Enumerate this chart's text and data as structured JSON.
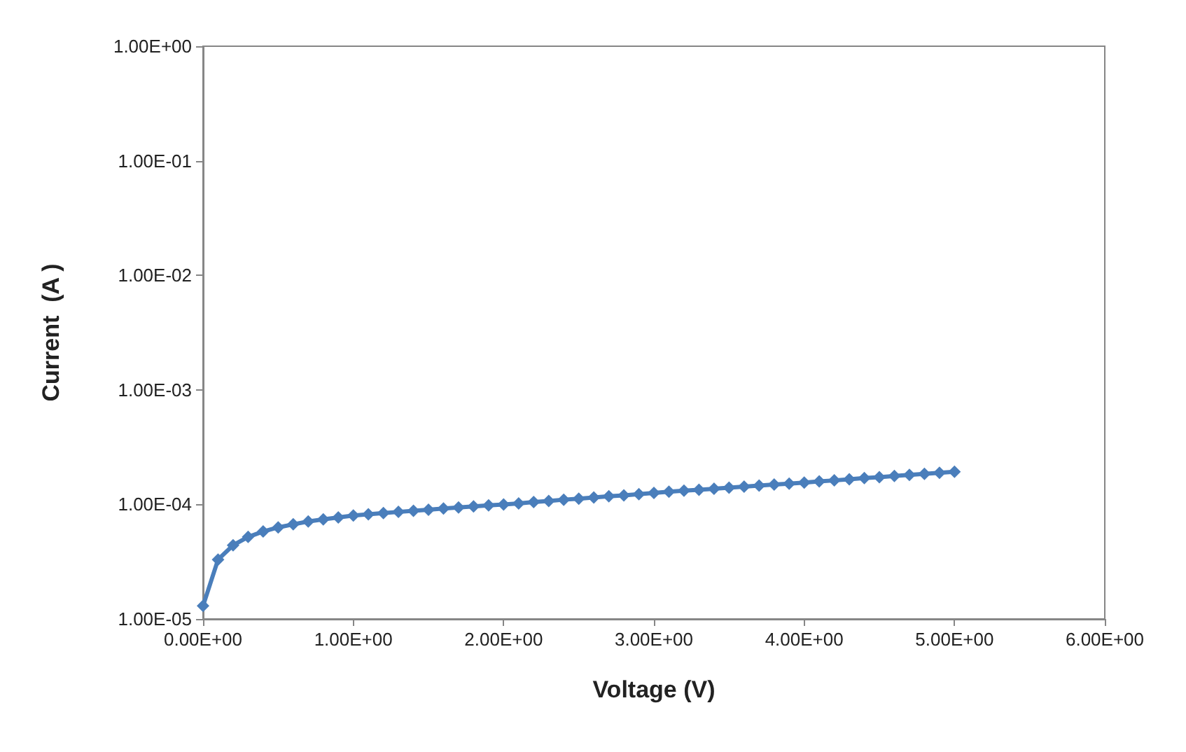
{
  "chart_data": {
    "type": "line",
    "xlabel": "Voltage (V)",
    "ylabel": "Current  (A )",
    "x": [
      0,
      0.1,
      0.2,
      0.3,
      0.4,
      0.5,
      0.6,
      0.7,
      0.8,
      0.9,
      1.0,
      1.1,
      1.2,
      1.3,
      1.4,
      1.5,
      1.6,
      1.7,
      1.8,
      1.9,
      2.0,
      2.1,
      2.2,
      2.3,
      2.4,
      2.5,
      2.6,
      2.7,
      2.8,
      2.9,
      3.0,
      3.1,
      3.2,
      3.3,
      3.4,
      3.5,
      3.6,
      3.7,
      3.8,
      3.9,
      4.0,
      4.1,
      4.2,
      4.3,
      4.4,
      4.5,
      4.6,
      4.7,
      4.8,
      4.9,
      5.0
    ],
    "series": [
      {
        "color": "#4a7ebb",
        "values": [
          1.3e-05,
          3.3e-05,
          4.4e-05,
          5.2e-05,
          5.8e-05,
          6.3e-05,
          6.7e-05,
          7.1e-05,
          7.4e-05,
          7.7e-05,
          8e-05,
          8.2e-05,
          8.4e-05,
          8.6e-05,
          8.8e-05,
          9e-05,
          9.2e-05,
          9.4e-05,
          9.6e-05,
          9.8e-05,
          0.0001,
          0.000102,
          0.000105,
          0.000107,
          0.00011,
          0.000112,
          0.000115,
          0.000118,
          0.00012,
          0.000123,
          0.000126,
          0.000129,
          0.000132,
          0.000134,
          0.000137,
          0.00014,
          0.000143,
          0.000146,
          0.000149,
          0.000152,
          0.000155,
          0.000159,
          0.000162,
          0.000166,
          0.00017,
          0.000173,
          0.000177,
          0.000181,
          0.000185,
          0.000189,
          0.000193
        ]
      }
    ],
    "xlim": [
      0,
      6
    ],
    "xticks": [
      {
        "value": 0,
        "label": "0.00E+00"
      },
      {
        "value": 1,
        "label": "1.00E+00"
      },
      {
        "value": 2,
        "label": "2.00E+00"
      },
      {
        "value": 3,
        "label": "3.00E+00"
      },
      {
        "value": 4,
        "label": "4.00E+00"
      },
      {
        "value": 5,
        "label": "5.00E+00"
      },
      {
        "value": 6,
        "label": "6.00E+00"
      }
    ],
    "ylim": [
      1e-05,
      1
    ],
    "yticks": [
      {
        "value": 1e-05,
        "label": "1.00E-05"
      },
      {
        "value": 0.0001,
        "label": "1.00E-04"
      },
      {
        "value": 0.001,
        "label": "1.00E-03"
      },
      {
        "value": 0.01,
        "label": "1.00E-02"
      },
      {
        "value": 0.1,
        "label": "1.00E-01"
      },
      {
        "value": 1,
        "label": "1.00E+00"
      }
    ],
    "log": "y",
    "grid": false,
    "marker": "diamond",
    "line_style": "solid"
  }
}
